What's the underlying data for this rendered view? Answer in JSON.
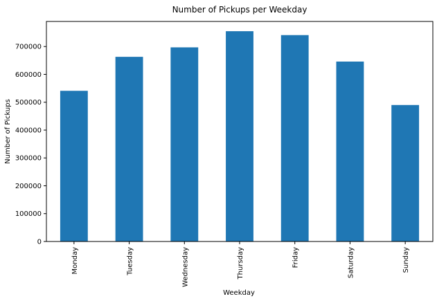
{
  "chart_data": {
    "type": "bar",
    "title": "Number of Pickups per Weekday",
    "xlabel": "Weekday",
    "ylabel": "Number of Pickups",
    "categories": [
      "Monday",
      "Tuesday",
      "Wednesday",
      "Thursday",
      "Friday",
      "Saturday",
      "Sunday"
    ],
    "values": [
      541000,
      663000,
      697000,
      755000,
      741000,
      646000,
      490000
    ],
    "ylim": [
      0,
      790000
    ],
    "yticks": [
      0,
      100000,
      200000,
      300000,
      400000,
      500000,
      600000,
      700000
    ],
    "ytick_labels": [
      "0",
      "100000",
      "200000",
      "300000",
      "400000",
      "500000",
      "600000",
      "700000"
    ],
    "grid": false,
    "bar_color": "#1f77b4"
  }
}
